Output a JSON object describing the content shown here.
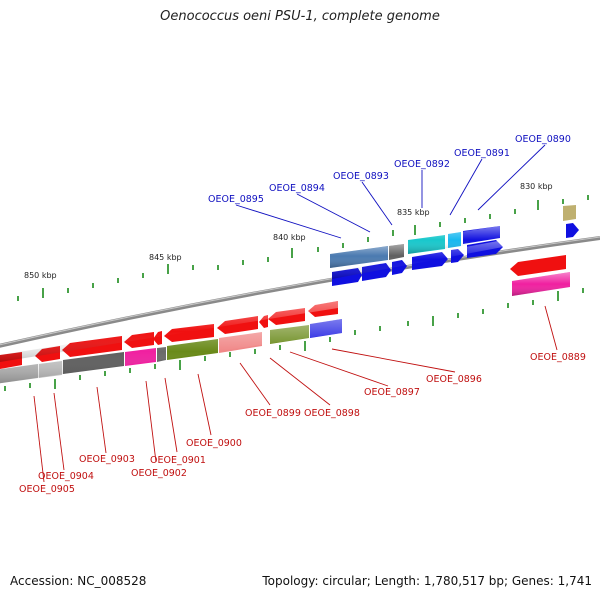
{
  "title": "Oenococcus oeni PSU-1, complete genome",
  "footer": {
    "accession": "Accession: NC_008528",
    "summary": "Topology: circular; Length: 1,780,517 bp; Genes: 1,741"
  },
  "colors": {
    "backbone": "#8a8a8a",
    "tick": "#1a8a1a",
    "label_plus": "#1010c0",
    "label_minus": "#c01010"
  },
  "scale_labels": [
    "830 kbp",
    "835 kbp",
    "840 kbp",
    "845 kbp",
    "850 kbp"
  ],
  "gene_labels_plus": [
    "OEOE_0890",
    "OEOE_0891",
    "OEOE_0892",
    "OEOE_0893",
    "OEOE_0894",
    "OEOE_0895"
  ],
  "gene_labels_minus": [
    "OEOE_0889",
    "OEOE_0896",
    "OEOE_0897",
    "OEOE_0898",
    "OEOE_0899",
    "OEOE_0900",
    "OEOE_0901",
    "OEOE_0902",
    "OEOE_0903",
    "OEOE_0904",
    "OEOE_0905"
  ]
}
